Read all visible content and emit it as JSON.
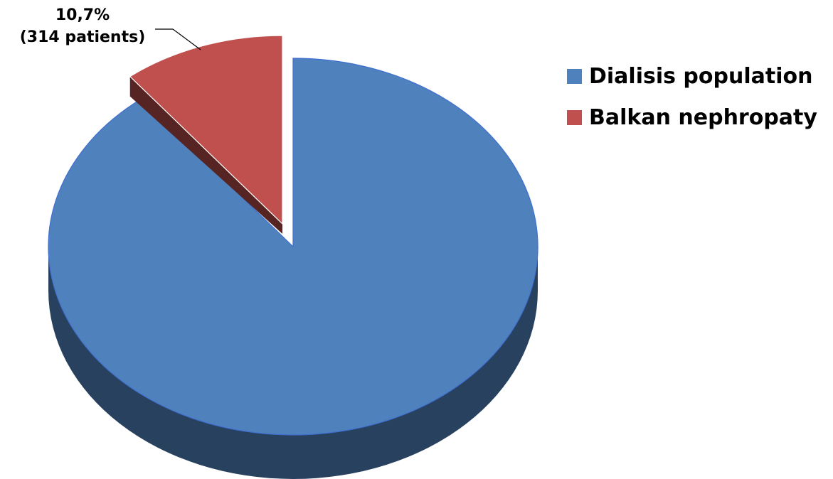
{
  "chart_data": {
    "type": "pie",
    "title": "",
    "series": [
      {
        "name": "Dialisis population",
        "value": 89.3,
        "color": "#4F81BD"
      },
      {
        "name": "Balkan nephropaty",
        "value": 10.7,
        "color": "#C0504D"
      }
    ],
    "data_label": {
      "slice": "Balkan nephropaty",
      "line1": "10,7%",
      "line2": "(314 patients)"
    },
    "style": "3d-exploded",
    "legend_position": "right"
  },
  "legend": {
    "items": [
      {
        "label": "Dialisis population",
        "color": "#4F81BD"
      },
      {
        "label": "Balkan nephropaty",
        "color": "#C0504D"
      }
    ]
  }
}
